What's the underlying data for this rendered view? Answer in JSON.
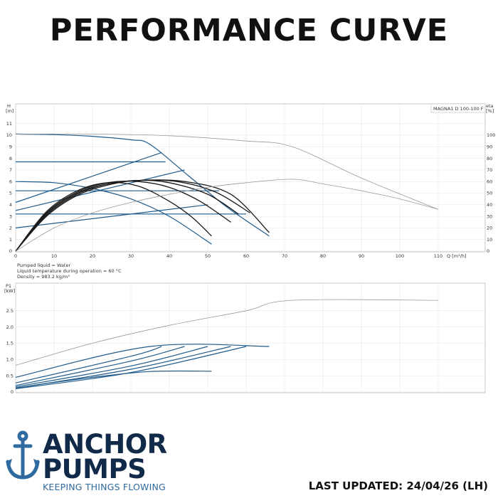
{
  "header": {
    "title": "PERFORMANCE CURVE"
  },
  "colors": {
    "curve_blue": "#1f5b8c",
    "curve_black": "#1a1a1a",
    "curve_grey": "#9a9a9a",
    "brand_navy": "#112a4a",
    "brand_blue": "#2f6aa0"
  },
  "chart_data": [
    {
      "type": "line",
      "model_label": "MAGNA1 D 100-100 F",
      "left_axis_label": "H",
      "left_axis_unit": "[m]",
      "right_axis_label": "eta",
      "right_axis_unit": "[%]",
      "x_axis_label": "Q [m³/h]",
      "xlim": [
        0,
        115
      ],
      "ylim": [
        0,
        11.5
      ],
      "y2lim": [
        0,
        115
      ],
      "x_ticks": [
        0,
        10,
        20,
        30,
        40,
        50,
        60,
        70,
        80,
        90,
        100,
        110
      ],
      "y_ticks": [
        0,
        1,
        2,
        3,
        4,
        5,
        6,
        7,
        8,
        9,
        10,
        11
      ],
      "y2_ticks": [
        0,
        10,
        20,
        30,
        40,
        50,
        60,
        70,
        80,
        90,
        100
      ],
      "grid": true,
      "notes": [
        "Pumped liquid = Water",
        "Liquid temperature during operation = 60 °C",
        "Density = 983.2 kg/m³"
      ],
      "series": [
        {
          "color": "blue",
          "role": "head-max",
          "x": [
            0,
            10,
            20,
            30,
            35,
            45,
            55,
            66
          ],
          "y": [
            10.1,
            10.05,
            9.9,
            9.6,
            9.2,
            6.5,
            3.8,
            1.3
          ]
        },
        {
          "color": "blue",
          "role": "head-const",
          "x": [
            0,
            39
          ],
          "y": [
            7.7,
            7.7
          ]
        },
        {
          "color": "blue",
          "role": "head-const",
          "x": [
            0,
            53
          ],
          "y": [
            5.2,
            5.2
          ]
        },
        {
          "color": "blue",
          "role": "head-const",
          "x": [
            0,
            60
          ],
          "y": [
            3.2,
            3.2
          ]
        },
        {
          "color": "blue",
          "role": "head-prop",
          "x": [
            0,
            38
          ],
          "y": [
            4.2,
            8.5
          ]
        },
        {
          "color": "blue",
          "role": "head-prop",
          "x": [
            0,
            44
          ],
          "y": [
            3.5,
            7.0
          ]
        },
        {
          "color": "blue",
          "role": "head-prop",
          "x": [
            0,
            50
          ],
          "y": [
            2.0,
            4.0
          ]
        },
        {
          "color": "blue",
          "role": "head-min",
          "x": [
            0,
            10,
            20,
            30,
            40,
            51
          ],
          "y": [
            6.0,
            5.9,
            5.4,
            4.5,
            3.0,
            0.6
          ]
        },
        {
          "color": "black",
          "role": "eta",
          "x": [
            0,
            8,
            16,
            24,
            32,
            40,
            46,
            51
          ],
          "y": [
            0,
            3.4,
            5.2,
            5.9,
            5.6,
            4.3,
            2.9,
            1.3
          ]
        },
        {
          "color": "black",
          "role": "eta",
          "x": [
            0,
            8,
            16,
            24,
            32,
            40,
            48,
            56
          ],
          "y": [
            0,
            3.3,
            5.1,
            5.9,
            6.0,
            5.5,
            4.3,
            2.5
          ]
        },
        {
          "color": "black",
          "role": "eta",
          "x": [
            0,
            8,
            16,
            24,
            32,
            40,
            50,
            58
          ],
          "y": [
            0,
            3.2,
            5.0,
            5.8,
            6.1,
            5.9,
            4.9,
            3.2
          ]
        },
        {
          "color": "black",
          "role": "eta",
          "x": [
            0,
            8,
            16,
            24,
            32,
            42,
            52,
            61
          ],
          "y": [
            0,
            3.1,
            4.9,
            5.8,
            6.1,
            6.0,
            5.1,
            3.3
          ]
        },
        {
          "color": "black",
          "role": "eta",
          "x": [
            0,
            8,
            16,
            24,
            32,
            44,
            56,
            66
          ],
          "y": [
            0,
            3.0,
            4.8,
            5.7,
            6.1,
            6.0,
            4.9,
            1.6
          ]
        },
        {
          "color": "grey",
          "role": "eta-max",
          "x": [
            0,
            10,
            20,
            30,
            40,
            50,
            60,
            72,
            80,
            90,
            100,
            110
          ],
          "y": [
            0,
            20,
            33,
            42,
            49,
            55,
            59,
            62,
            58,
            52,
            45,
            36
          ]
        },
        {
          "color": "grey",
          "role": "head-ref",
          "x": [
            0,
            20,
            40,
            60,
            72,
            90,
            110
          ],
          "y": [
            10.1,
            10.1,
            9.95,
            9.5,
            9.0,
            6.3,
            3.6
          ]
        }
      ]
    },
    {
      "type": "line",
      "left_axis_label": "P1",
      "left_axis_unit": "[kW]",
      "xlim": [
        0,
        115
      ],
      "ylim": [
        0,
        3.0
      ],
      "y_ticks": [
        0,
        0.5,
        1,
        1.5,
        2,
        2.5
      ],
      "y_tick_labels": [
        "0",
        "0.5",
        "1.0",
        "1.5",
        "2.0",
        "2.5"
      ],
      "grid": true,
      "series": [
        {
          "color": "grey",
          "role": "p1-ref",
          "x": [
            0,
            20,
            40,
            60,
            72,
            110
          ],
          "y": [
            0.82,
            1.5,
            2.05,
            2.5,
            2.82,
            2.82
          ]
        },
        {
          "color": "blue",
          "role": "p1-max",
          "x": [
            0,
            35,
            66
          ],
          "y": [
            0.45,
            1.4,
            1.4
          ]
        },
        {
          "color": "blue",
          "role": "p1",
          "x": [
            0,
            30,
            38
          ],
          "y": [
            0.28,
            1.1,
            1.4
          ]
        },
        {
          "color": "blue",
          "role": "p1",
          "x": [
            0,
            30,
            44
          ],
          "y": [
            0.2,
            0.95,
            1.4
          ]
        },
        {
          "color": "blue",
          "role": "p1",
          "x": [
            0,
            30,
            50
          ],
          "y": [
            0.16,
            0.8,
            1.4
          ]
        },
        {
          "color": "blue",
          "role": "p1",
          "x": [
            0,
            30,
            56
          ],
          "y": [
            0.12,
            0.7,
            1.4
          ]
        },
        {
          "color": "blue",
          "role": "p1",
          "x": [
            0,
            30,
            60
          ],
          "y": [
            0.1,
            0.6,
            1.4
          ]
        },
        {
          "color": "blue",
          "role": "p1-min",
          "x": [
            0,
            20,
            35,
            51
          ],
          "y": [
            0.13,
            0.45,
            0.63,
            0.64
          ]
        }
      ]
    }
  ],
  "brand": {
    "line1": "ANCHOR",
    "line2": "PUMPS",
    "tagline": "KEEPING THINGS FLOWING"
  },
  "footer": {
    "updated": "LAST UPDATED: 24/04/26 (LH)"
  }
}
